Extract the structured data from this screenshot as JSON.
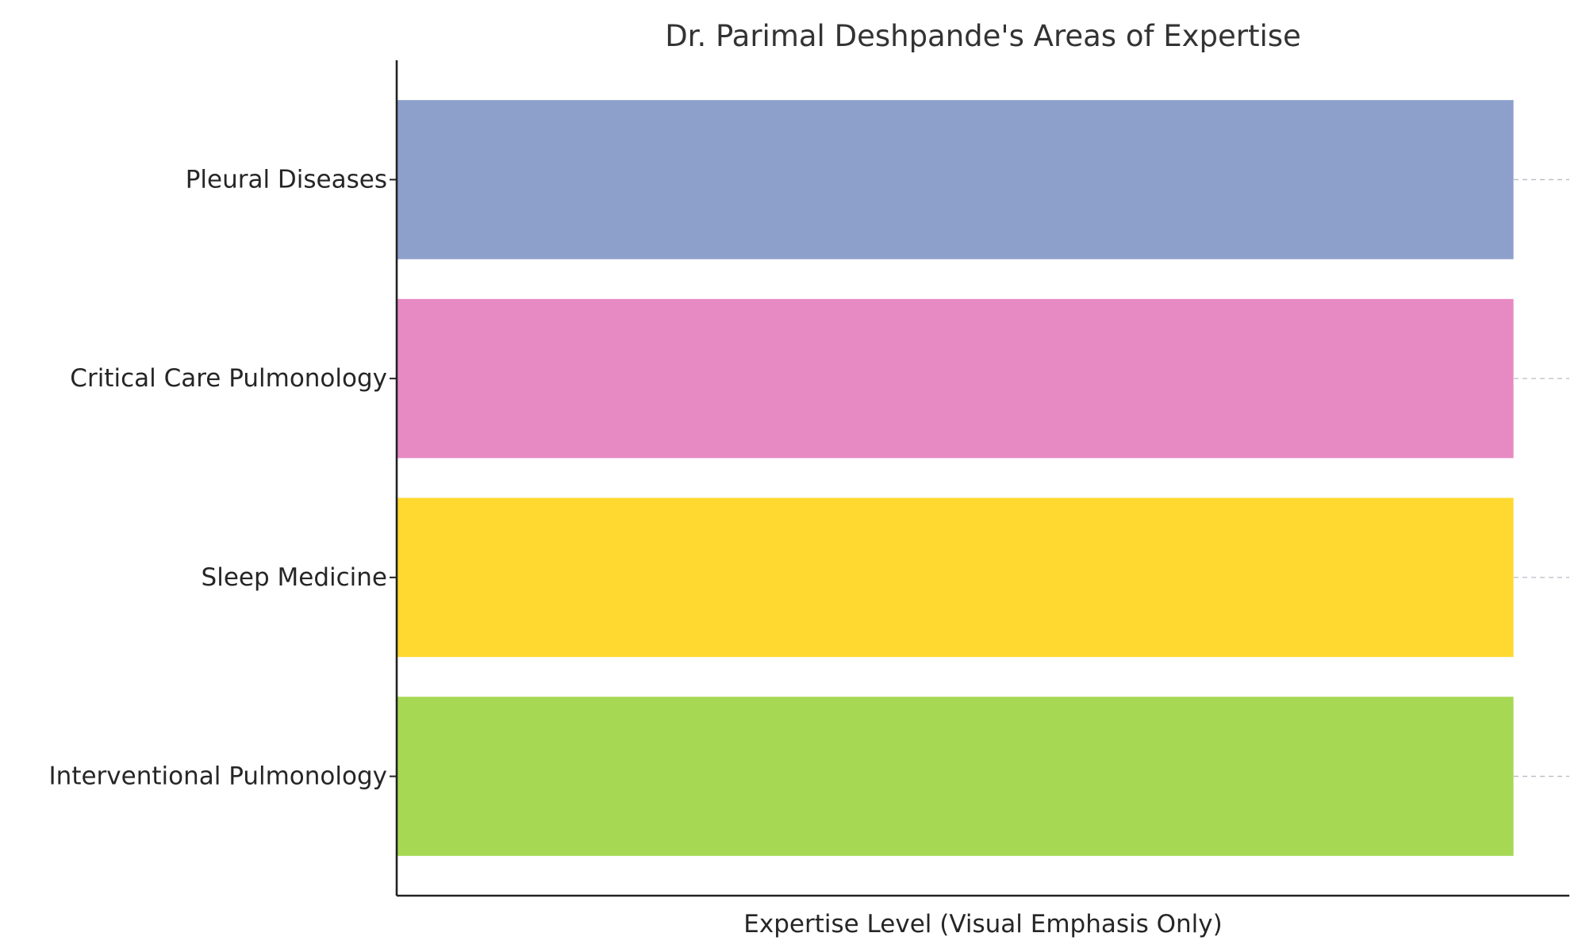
{
  "chart_data": {
    "type": "bar",
    "orientation": "horizontal",
    "title": "Dr. Parimal Deshpande's Areas of Expertise",
    "xlabel": "Expertise Level (Visual Emphasis Only)",
    "ylabel": "",
    "categories": [
      "Interventional Pulmonology",
      "Sleep Medicine",
      "Critical Care Pulmonology",
      "Pleural Diseases"
    ],
    "values": [
      1,
      1,
      1,
      1
    ],
    "xlim": [
      0,
      1.05
    ],
    "colors": [
      "#a6d854",
      "#ffd92f",
      "#e78ac3",
      "#8da0cb"
    ],
    "x_ticks_visible": false,
    "grid": {
      "axis": "y",
      "style": "dashed",
      "color": "#b8bcc4"
    },
    "legend": "none"
  }
}
